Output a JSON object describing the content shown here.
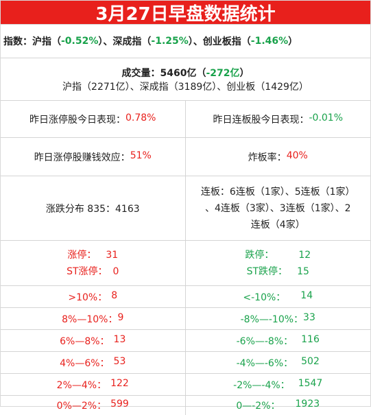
{
  "title": "3月27日早盘数据统计",
  "index": {
    "prefix": "指数：",
    "sh_name": "沪指（",
    "sh_val": "-0.52%",
    "sh_close": "）、",
    "sz_name": "深成指（",
    "sz_val": "-1.25%",
    "sz_close": "）、",
    "cy_name": "创业板指（",
    "cy_val": "-1.46%",
    "cy_close": "）"
  },
  "volume": {
    "label": "成交量：5460亿（",
    "change": "-272亿",
    "close": "）",
    "detail": "沪指（2271亿）、深成指（3189亿）、创业板（1429亿）"
  },
  "row1": {
    "left_label": "昨日涨停股今日表现：",
    "left_val": "0.78%",
    "right_label": "昨日连板股今日表现：",
    "right_val": "-0.01%"
  },
  "row2": {
    "left_label": "昨日涨停股赚钱效应：",
    "left_val": "51%",
    "right_label": "炸板率：",
    "right_val": "40%"
  },
  "row3": {
    "left_text": "涨跌分布 835：4163",
    "right_line1": "连板：6连板（1家）、5连板（1家）",
    "right_line2": "、4连板（3家）、3连板（1家）、2",
    "right_line3": "连板（4家）"
  },
  "limits": {
    "up_label": "涨停：",
    "up_val": "31",
    "st_up_label": "ST涨停：",
    "st_up_val": "0",
    "down_label": "跌停：",
    "down_val": "12",
    "st_down_label": "ST跌停：",
    "st_down_val": "15"
  },
  "dist": [
    {
      "l_label": ">10%：",
      "l_val": "8",
      "r_label": "<-10%：",
      "r_val": "14"
    },
    {
      "l_label": "8%—10%：",
      "l_val": "9",
      "r_label": "-8%—-10%：",
      "r_val": "33"
    },
    {
      "l_label": "6%—8%：",
      "l_val": "13",
      "r_label": "-6%—-8%：",
      "r_val": "116"
    },
    {
      "l_label": "4%—6%：",
      "l_val": "53",
      "r_label": "-4%—-6%：",
      "r_val": "502"
    },
    {
      "l_label": "2%—4%：",
      "l_val": "122",
      "r_label": "-2%—-4%：",
      "r_val": "1547"
    },
    {
      "l_label": "0%—2%：",
      "l_val": "599",
      "r_label": "0—-2%：",
      "r_val": "1923"
    }
  ],
  "colors": {
    "red": "#e8201c",
    "green": "#19a24b"
  }
}
